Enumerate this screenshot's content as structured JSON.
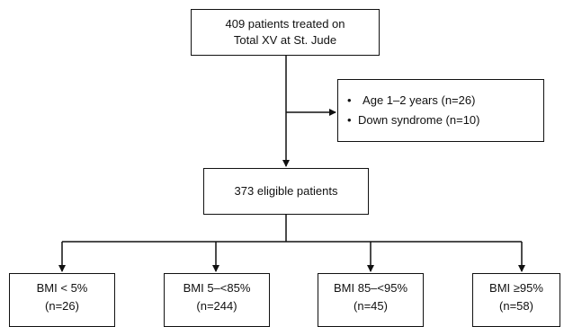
{
  "flowchart": {
    "top_box": {
      "line1": "409 patients treated on",
      "line2": "Total XV at St. Jude"
    },
    "exclusions": [
      "Age 1–2 years (n=26)",
      "Down syndrome (n=10)"
    ],
    "eligible_box": {
      "label": "373 eligible patients"
    },
    "bmi_groups": [
      {
        "label": "BMI < 5%",
        "count": "(n=26)"
      },
      {
        "label": "BMI 5–<85%",
        "count": "(n=244)"
      },
      {
        "label": "BMI 85–<95%",
        "count": "(n=45)"
      },
      {
        "label": "BMI ≥95%",
        "count": "(n=58)"
      }
    ]
  },
  "colors": {
    "line": "#111111",
    "box_border": "#111111",
    "background": "#ffffff"
  }
}
